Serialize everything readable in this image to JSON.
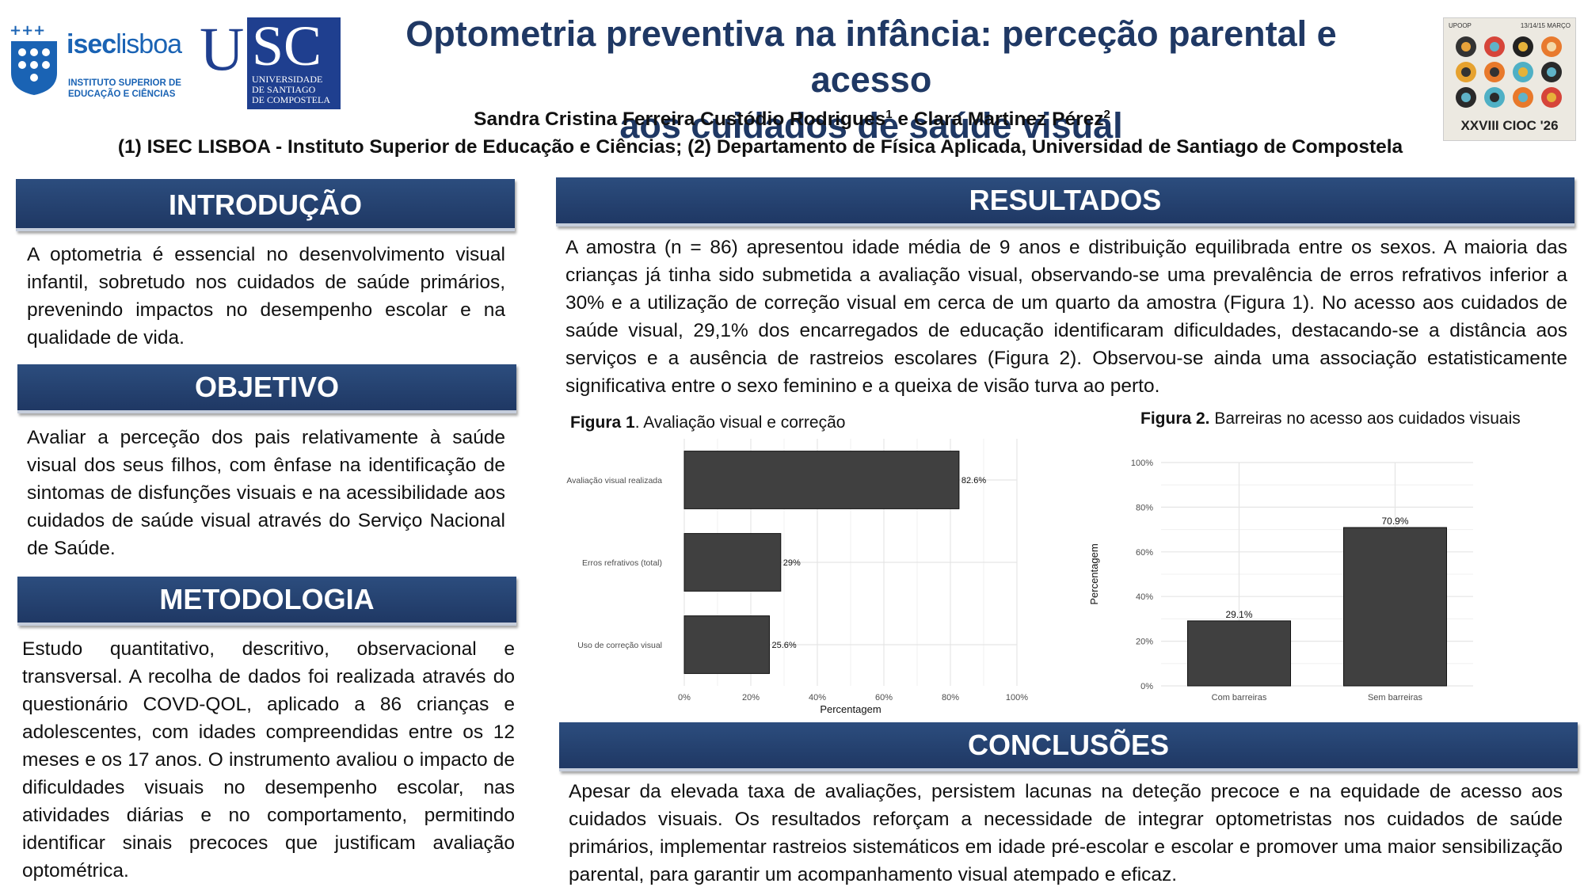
{
  "header": {
    "title_line1": "Optometria preventiva na infância: perceção parental e acesso",
    "title_line2": "aos cuidados de saúde visual",
    "author1": "Sandra Cristina Ferreira Custódio Rodrigues",
    "author1_sup": "1",
    "author_join": " e ",
    "author2": "Clara Martinez Pérez",
    "author2_sup": "2",
    "affiliations": "(1) ISEC LISBOA - Instituto Superior de Educação e Ciências; (2) Departamento de Física Aplicada, Universidad de Santiago de Compostela"
  },
  "logos": {
    "isec_name_a": "isec",
    "isec_name_b": "lisboa",
    "isec_sub1": "INSTITUTO SUPERIOR DE",
    "isec_sub2": "EDUCAÇÃO E CIÊNCIAS",
    "usc_u": "U",
    "usc_sc": "SC",
    "usc_line1": "UNIVERSIDADE",
    "usc_line2": "DE SANTIAGO",
    "usc_line3": "DE COMPOSTELA",
    "cioc_top_left": "UPOOP",
    "cioc_top_right": "13/14/15 MARÇO",
    "cioc_label": "XXVIII CIOC '26"
  },
  "introducao": {
    "heading": "INTRODUÇÃO",
    "text": "A optometria é essencial no desenvolvimento visual infantil, sobretudo nos cuidados de saúde primários, prevenindo impactos no desempenho escolar e na qualidade de vida."
  },
  "objetivo": {
    "heading": "OBJETIVO",
    "text": "Avaliar a perceção dos pais relativamente à saúde visual dos seus filhos, com ênfase na identificação de sintomas de disfunções visuais e na acessibilidade aos cuidados de saúde visual através do Serviço Nacional de Saúde."
  },
  "metodologia": {
    "heading": "METODOLOGIA",
    "text": "Estudo quantitativo, descritivo, observacional e transversal. A recolha de dados foi realizada através do questionário COVD-QOL, aplicado a 86 crianças e adolescentes, com idades compreendidas entre os 12 meses e os 17 anos. O instrumento avaliou o impacto de dificuldades visuais no desempenho escolar, nas atividades diárias e no comportamento, permitindo identificar sinais precoces que justificam avaliação optométrica."
  },
  "resultados": {
    "heading": "RESULTADOS",
    "text": "A amostra (n = 86) apresentou idade média de 9 anos e distribuição equilibrada entre os sexos. A maioria das crianças já tinha sido submetida a avaliação visual, observando-se uma prevalência de erros refrativos inferior a 30% e a utilização de correção visual em cerca de um quarto da amostra (Figura 1). No acesso aos cuidados de saúde visual, 29,1% dos encarregados de educação identificaram dificuldades, destacando-se a distância aos serviços e a ausência de rastreios escolares (Figura 2). Observou-se ainda uma associação estatisticamente significativa entre o sexo feminino e a queixa de visão turva ao perto."
  },
  "figura1": {
    "label": "Figura 1",
    "caption": ". Avaliação visual e correção"
  },
  "figura2": {
    "label": "Figura 2.",
    "caption": " Barreiras no acesso aos cuidados visuais"
  },
  "conclusoes": {
    "heading": "CONCLUSÕES",
    "text": "Apesar da elevada taxa de avaliações, persistem lacunas na deteção precoce e na equidade de acesso aos cuidados visuais. Os resultados reforçam a necessidade de integrar optometristas nos cuidados de saúde primários, implementar rastreios sistemáticos em idade pré-escolar e escolar e promover uma maior sensibilização parental, para garantir um acompanhamento visual atempado e eficaz."
  },
  "colors": {
    "header_blue": "#1f3864",
    "bar": "#404040",
    "grid": "#e5e5e5"
  },
  "chart_data": [
    {
      "type": "bar",
      "orientation": "horizontal",
      "title": "Figura 1. Avaliação visual e correção",
      "categories": [
        "Avaliação visual realizada",
        "Erros refrativos (total)",
        "Uso de correção visual"
      ],
      "values": [
        82.6,
        29,
        25.6
      ],
      "value_labels": [
        "82.6%",
        "29%",
        "25.6%"
      ],
      "xlabel": "Percentagem",
      "ylabel": "",
      "xlim": [
        0,
        100
      ],
      "ticks": [
        0,
        20,
        40,
        60,
        80,
        100
      ],
      "tick_labels": [
        "0%",
        "20%",
        "40%",
        "60%",
        "80%",
        "100%"
      ],
      "grid": true
    },
    {
      "type": "bar",
      "orientation": "vertical",
      "title": "Figura 2. Barreiras no acesso aos cuidados visuais",
      "categories": [
        "Com barreiras",
        "Sem barreiras"
      ],
      "values": [
        29.1,
        70.9
      ],
      "value_labels": [
        "29.1%",
        "70.9%"
      ],
      "xlabel": "",
      "ylabel": "Percentagem",
      "ylim": [
        0,
        100
      ],
      "ticks": [
        0,
        20,
        40,
        60,
        80,
        100
      ],
      "tick_labels": [
        "0%",
        "20%",
        "40%",
        "60%",
        "80%",
        "100%"
      ],
      "grid": true
    }
  ]
}
